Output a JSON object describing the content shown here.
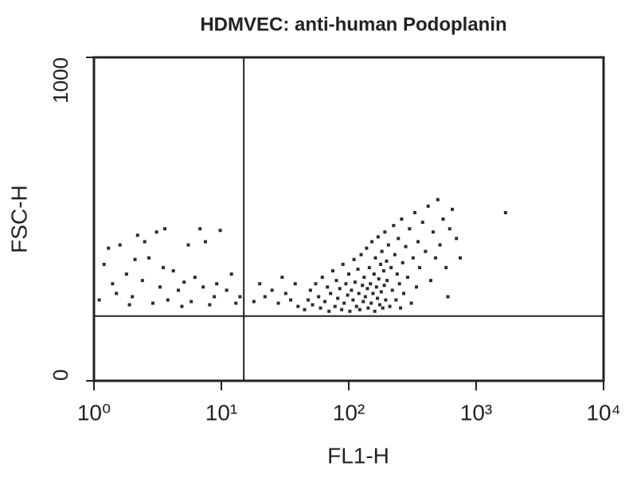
{
  "chart_data": {
    "type": "scatter",
    "title": "HDMVEC: anti-human Podoplanin",
    "x_label": "FL1-H",
    "y_label": "FSC-H",
    "log_x": true,
    "xlim": [
      1,
      10000
    ],
    "ylim": [
      0,
      1000
    ],
    "xticks": [
      {
        "value": 1,
        "label": "10⁰"
      },
      {
        "value": 10,
        "label": "10¹"
      },
      {
        "value": 100,
        "label": "10²"
      },
      {
        "value": 1000,
        "label": "10³"
      },
      {
        "value": 10000,
        "label": "10⁴"
      }
    ],
    "yticks": [
      0,
      1000
    ],
    "gates": {
      "x": 15,
      "y": 200
    },
    "color": "#2e2a28",
    "x": [
      1.3,
      1.6,
      2.2,
      2.5,
      3.1,
      3.6,
      1.2,
      1.8,
      2.7,
      4.2,
      5.5,
      6.8,
      7.5,
      9.8,
      1.1,
      1.5,
      2.0,
      2.9,
      3.8,
      4.6,
      5.8,
      7.2,
      8.8,
      11,
      13,
      1.4,
      2.4,
      3.3,
      6.2,
      9.2,
      12,
      1.9,
      4.9,
      8.1,
      14,
      2.1,
      3.5,
      5.1,
      18,
      20,
      22,
      25,
      28,
      30,
      32,
      35,
      38,
      40,
      1700,
      45,
      48,
      50,
      52,
      55,
      58,
      60,
      62,
      65,
      68,
      70,
      72,
      75,
      78,
      80,
      82,
      85,
      88,
      90,
      92,
      95,
      98,
      100,
      102,
      105,
      108,
      110,
      112,
      115,
      118,
      120,
      122,
      125,
      128,
      130,
      132,
      135,
      138,
      140,
      142,
      145,
      148,
      150,
      152,
      155,
      158,
      160,
      162,
      165,
      168,
      170,
      172,
      175,
      178,
      180,
      182,
      185,
      188,
      190,
      192,
      195,
      198,
      200,
      205,
      210,
      215,
      220,
      225,
      230,
      235,
      240,
      245,
      250,
      255,
      260,
      265,
      270,
      280,
      290,
      300,
      310,
      320,
      330,
      340,
      350,
      360,
      380,
      400,
      420,
      440,
      460,
      480,
      500,
      520,
      550,
      580,
      620,
      650,
      700,
      600,
      750
    ],
    "values": [
      410,
      420,
      450,
      430,
      460,
      470,
      360,
      330,
      380,
      340,
      420,
      470,
      430,
      465,
      250,
      270,
      260,
      240,
      250,
      280,
      245,
      290,
      260,
      280,
      240,
      300,
      310,
      290,
      320,
      300,
      330,
      235,
      230,
      235,
      260,
      375,
      350,
      305,
      245,
      300,
      260,
      280,
      240,
      320,
      270,
      250,
      300,
      230,
      520,
      220,
      250,
      280,
      235,
      300,
      260,
      225,
      320,
      245,
      290,
      215,
      270,
      340,
      230,
      310,
      255,
      285,
      220,
      360,
      240,
      300,
      265,
      330,
      215,
      280,
      250,
      375,
      305,
      230,
      345,
      270,
      220,
      390,
      295,
      245,
      320,
      260,
      410,
      285,
      225,
      350,
      300,
      240,
      430,
      270,
      330,
      215,
      380,
      290,
      255,
      445,
      315,
      235,
      360,
      275,
      400,
      225,
      340,
      295,
      460,
      250,
      370,
      310,
      420,
      230,
      350,
      280,
      480,
      390,
      250,
      330,
      440,
      300,
      225,
      500,
      365,
      270,
      415,
      320,
      470,
      240,
      380,
      520,
      290,
      430,
      350,
      490,
      400,
      540,
      310,
      460,
      380,
      560,
      420,
      500,
      350,
      470,
      530,
      440,
      260,
      380
    ]
  }
}
